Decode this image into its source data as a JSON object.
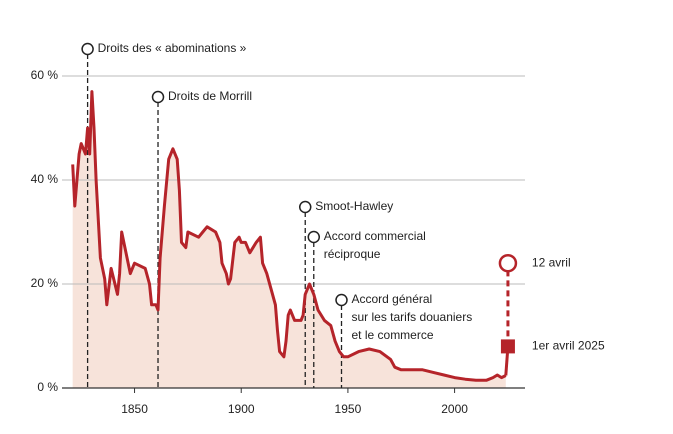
{
  "chart_data": {
    "type": "line",
    "x": [
      1821,
      1822,
      1824,
      1825,
      1827,
      1828,
      1829,
      1830,
      1831,
      1832,
      1834,
      1836,
      1837,
      1839,
      1842,
      1843,
      1844,
      1846,
      1848,
      1850,
      1855,
      1857,
      1858,
      1860,
      1861,
      1862,
      1864,
      1866,
      1868,
      1870,
      1871,
      1872,
      1874,
      1875,
      1880,
      1882,
      1884,
      1888,
      1890,
      1891,
      1893,
      1894,
      1895,
      1897,
      1899,
      1900,
      1902,
      1904,
      1907,
      1909,
      1910,
      1912,
      1914,
      1916,
      1917,
      1918,
      1920,
      1921,
      1922,
      1923,
      1925,
      1928,
      1929,
      1930,
      1932,
      1934,
      1936,
      1939,
      1942,
      1944,
      1946,
      1948,
      1950,
      1955,
      1960,
      1965,
      1970,
      1972,
      1975,
      1980,
      1985,
      1990,
      1995,
      2000,
      2005,
      2010,
      2015,
      2018,
      2020,
      2022,
      2024
    ],
    "values": [
      43,
      35,
      45,
      47,
      45,
      50,
      45,
      57,
      50,
      40,
      25,
      21,
      16,
      23,
      18,
      22,
      30,
      26,
      22,
      24,
      23,
      20,
      16,
      16,
      15,
      25,
      35,
      44,
      46,
      44,
      38,
      28,
      27,
      30,
      29,
      30,
      31,
      30,
      28,
      24,
      22,
      20,
      21,
      28,
      29,
      28,
      28,
      26,
      28,
      29,
      24,
      22,
      19,
      16,
      11,
      7,
      6,
      9,
      14,
      15,
      13,
      13,
      14,
      18,
      20,
      18,
      15,
      13,
      12,
      9,
      7,
      6,
      6,
      7,
      7.5,
      7,
      5.5,
      4,
      3.5,
      3.5,
      3.5,
      3,
      2.5,
      2,
      1.7,
      1.5,
      1.5,
      2,
      2.5,
      2,
      2.4
    ],
    "color": "#b5242a",
    "area_color": "#f7e3da",
    "xlim": [
      1816,
      2033
    ],
    "ylim": [
      0,
      65
    ],
    "xticks": [
      1850,
      1900,
      1950,
      2000
    ],
    "yticks": [
      {
        "value": 0,
        "label": "0 %"
      },
      {
        "value": 20,
        "label": "20 %"
      },
      {
        "value": 40,
        "label": "40 %"
      },
      {
        "value": 60,
        "label": "60 %"
      }
    ],
    "grid": true,
    "points": [
      {
        "label": "1er avril 2025",
        "x": 2025,
        "value": 8
      },
      {
        "label": "12 avril",
        "x": 2025,
        "value": 24
      }
    ],
    "annotations": [
      {
        "x": 1828,
        "lines": [
          "Droits des « abominations »"
        ]
      },
      {
        "x": 1861,
        "lines": [
          "Droits de Morrill"
        ]
      },
      {
        "x": 1930,
        "lines": [
          "Smoot-Hawley"
        ]
      },
      {
        "x": 1934,
        "lines": [
          "Accord commercial",
          "réciproque"
        ]
      },
      {
        "x": 1947,
        "lines": [
          "Accord général",
          "sur les tarifs douaniers",
          "et le commerce"
        ]
      }
    ]
  }
}
